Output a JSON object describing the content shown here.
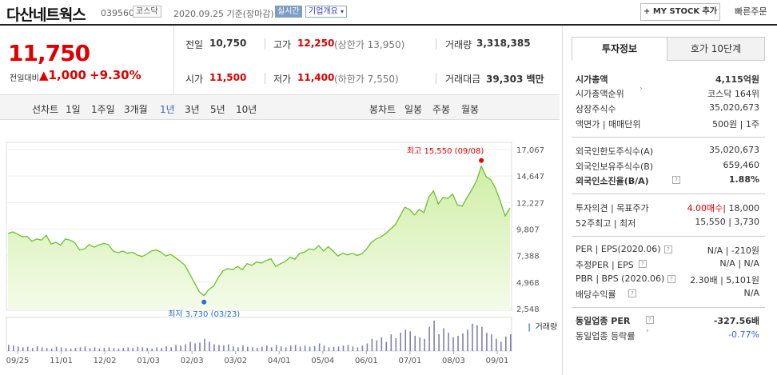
{
  "header": {
    "title": "다산네트웍스",
    "code": "039560",
    "market": "코스닥",
    "date_text": "2020.09.25  기준(장마감)",
    "realtime_label": "실시간",
    "company_info_label": "기업개요",
    "mystock_label": "MY STOCK 추가",
    "quick_order_label": "빠른주문"
  },
  "quote": {
    "price": "11,750",
    "change_label": "전일대비",
    "change_value": "1,000",
    "change_pct": "+9.30%",
    "prev_close_label": "전일",
    "prev_close": "10,750",
    "high_label": "고가",
    "high": "12,250",
    "upper_limit": "(상한가 13,950)",
    "volume_label": "거래량",
    "volume": "3,318,385",
    "open_label": "시가",
    "open": "11,500",
    "low_label": "저가",
    "low": "11,400",
    "lower_limit": "(하한가 7,550)",
    "amount_label": "거래대금",
    "amount": "39,303 백만"
  },
  "toolbar": {
    "line_chart_label": "선차트",
    "ranges": [
      "1일",
      "1주일",
      "3개월",
      "1년",
      "3년",
      "5년",
      "10년"
    ],
    "selected_range": "1년",
    "candle_chart_label": "봉차트",
    "candle_ranges": [
      "일봉",
      "주봉",
      "월봉"
    ]
  },
  "chart_data": {
    "type": "area",
    "y_ticks": [
      "17,067",
      "14,647",
      "12,227",
      "9,807",
      "7,388",
      "4,968",
      "2,548"
    ],
    "ylim": [
      2548,
      17067
    ],
    "x_ticks": [
      "09/25",
      "11/01",
      "12/02",
      "01/03",
      "02/03",
      "03/02",
      "04/01",
      "05/04",
      "06/01",
      "07/01",
      "08/03",
      "09/01"
    ],
    "max_annotation": "최고 15,550 (09/08)",
    "min_annotation": "최저 3,730 (03/23)",
    "volume_label": "거래량",
    "series": [
      {
        "values": [
          9400,
          9550,
          9350,
          9100,
          9150,
          8700,
          8900,
          8800,
          9250,
          8450,
          8600,
          8350,
          8900,
          8800,
          8550,
          7900,
          8000,
          8400,
          8150,
          8350,
          8500,
          8400,
          7800,
          7650,
          7800,
          7600,
          7700,
          7450,
          7300,
          7500,
          7800,
          7900,
          7700,
          7350,
          7500,
          7200,
          6900,
          6500,
          5700,
          4900,
          4100,
          3730,
          4300,
          4600,
          5400,
          6000,
          6200,
          6100,
          6400,
          6100,
          6650,
          6500,
          6800,
          6700,
          6950,
          7100,
          6400,
          6650,
          6850,
          7250,
          7050,
          7600,
          7700,
          8000,
          7900,
          8300,
          7800,
          8200,
          7800,
          7350,
          7600,
          7450,
          7600,
          7400,
          7550,
          8000,
          8600,
          8900,
          9100,
          9400,
          9800,
          10200,
          11000,
          11800,
          11600,
          11100,
          11600,
          11300,
          12700,
          13300,
          12100,
          12700,
          12600,
          13000,
          12000,
          11900,
          12700,
          13400,
          14200,
          15550,
          14600,
          14300,
          13500,
          12300,
          11000,
          11750
        ]
      }
    ],
    "volume": [
      0.2,
      0.18,
      0.15,
      0.12,
      0.14,
      0.1,
      0.16,
      0.12,
      0.1,
      0.08,
      0.14,
      0.12,
      0.1,
      0.08,
      0.1,
      0.12,
      0.15,
      0.1,
      0.12,
      0.08,
      0.1,
      0.12,
      0.1,
      0.08,
      0.1,
      0.12,
      0.1,
      0.14,
      0.12,
      0.1,
      0.08,
      0.12,
      0.1,
      0.15,
      0.12,
      0.2,
      0.18,
      0.22,
      0.3,
      0.25,
      0.28,
      0.4,
      0.3,
      0.22,
      0.2,
      0.18,
      0.22,
      0.15,
      0.12,
      0.18,
      0.14,
      0.12,
      0.1,
      0.14,
      0.18,
      0.12,
      0.2,
      0.15,
      0.12,
      0.18,
      0.2,
      0.15,
      0.18,
      0.14,
      0.16,
      0.25,
      0.18,
      0.12,
      0.14,
      0.15,
      0.18,
      0.2,
      0.15,
      0.12,
      0.18,
      0.25,
      0.4,
      0.35,
      0.45,
      0.3,
      0.55,
      0.42,
      0.6,
      0.7,
      0.65,
      0.5,
      0.45,
      0.4,
      0.8,
      1.0,
      0.55,
      0.75,
      0.6,
      0.45,
      0.5,
      0.58,
      0.7,
      0.9,
      0.85,
      0.8,
      0.6,
      0.55,
      0.4,
      0.3,
      0.48,
      0.55
    ]
  },
  "right_panel": {
    "tab_active": "투자정보",
    "tab_other": "호가 10단계",
    "rows": [
      {
        "label": "시가총액",
        "value": "4,115억원"
      },
      {
        "label": "시가총액순위",
        "value": "코스닥 164위"
      },
      {
        "label": "상장주식수",
        "value": "35,020,673"
      },
      {
        "label": "액면가 | 매매단위",
        "value": "500원 | 1주"
      },
      {
        "label": "외국인한도주식수(A)",
        "value": "35,020,673"
      },
      {
        "label": "외국인보유주식수(B)",
        "value": "659,460"
      },
      {
        "label": "외국인소진율(B/A)",
        "value": "1.88%"
      },
      {
        "label": "투자의견 | 목표주가",
        "value_red": "4.00매수",
        "value": "| 18,000"
      },
      {
        "label": "52주최고 | 최저",
        "value": "15,550 | 3,730"
      },
      {
        "label": "PER | EPS(2020.06)",
        "value": "N/A | -210원"
      },
      {
        "label": "추정PER | EPS",
        "value": "N/A | N/A"
      },
      {
        "label": "PBR | BPS (2020.06)",
        "value": "2.30배 | 5,101원"
      },
      {
        "label": "배당수익률",
        "value": "N/A"
      },
      {
        "label": "동일업종 PER",
        "value": "-327.56배"
      },
      {
        "label": "동일업종 등락률",
        "value": "-0.77%"
      }
    ]
  }
}
